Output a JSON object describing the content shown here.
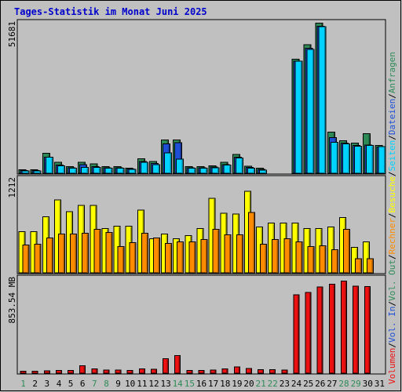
{
  "chart_data": {
    "type": "bar",
    "title": "Tages-Statistik im Monat Juni 2025",
    "categories": [
      "1",
      "2",
      "3",
      "4",
      "5",
      "6",
      "7",
      "8",
      "9",
      "10",
      "11",
      "12",
      "13",
      "14",
      "15",
      "16",
      "17",
      "18",
      "19",
      "20",
      "21",
      "22",
      "23",
      "24",
      "25",
      "26",
      "27",
      "28",
      "29",
      "30",
      "31"
    ],
    "weekend_days": [
      "1",
      "7",
      "8",
      "14",
      "15",
      "21",
      "22",
      "28",
      "29"
    ],
    "colors": {
      "background": "#c0c0c0",
      "title": "#0000cc",
      "weekday_label": "#000000",
      "weekend_label": "#2e8b57",
      "anfragen": "#2e8b57",
      "dateien": "#1f4fd6",
      "seiten": "#00d2ff",
      "besuche": "#ffff00",
      "rechner": "#ff8c00",
      "volumen": "#ee1111"
    },
    "panels": [
      {
        "id": "hits",
        "max_label": "51681",
        "ylim": [
          0,
          51681
        ],
        "series": [
          {
            "name": "Anfragen",
            "values": [
              1200,
              1200,
              6900,
              3800,
              2300,
              3800,
              3200,
              2300,
              2300,
              1700,
              5000,
              4000,
              11400,
              11500,
              2300,
              2300,
              2500,
              3800,
              6400,
              2400,
              1700,
              0,
              0,
              39200,
              44100,
              51500,
              14100,
              11200,
              10300,
              13600,
              9500
            ]
          },
          {
            "name": "Dateien",
            "values": [
              900,
              900,
              5500,
              2800,
              1900,
              3000,
              2300,
              1900,
              1900,
              1500,
              4000,
              3300,
              10100,
              10500,
              1900,
              1900,
              2200,
              3000,
              5500,
              2000,
              1300,
              0,
              0,
              38500,
              43000,
              50500,
              12300,
              10400,
              9500,
              9700,
              9000
            ]
          },
          {
            "name": "Seiten",
            "values": [
              800,
              800,
              5500,
              2600,
              1700,
              2000,
              2000,
              1700,
              1700,
              1300,
              3800,
              3000,
              7000,
              4800,
              1800,
              1800,
              1900,
              2800,
              5300,
              1700,
              1100,
              0,
              0,
              38500,
              42500,
              50300,
              10600,
              10100,
              9300,
              9500,
              9100
            ]
          }
        ]
      },
      {
        "id": "visits",
        "max_label": "1212",
        "ylim": [
          0,
          1212
        ],
        "series": [
          {
            "name": "Besuche",
            "values": [
              530,
              530,
              720,
              940,
              790,
              870,
              870,
              570,
              600,
              600,
              810,
              440,
              500,
              440,
              480,
              570,
              960,
              770,
              760,
              1050,
              590,
              640,
              640,
              640,
              570,
              570,
              590,
              710,
              330,
              400,
              0
            ]
          },
          {
            "name": "Rechner",
            "values": [
              360,
              370,
              450,
              500,
              500,
              510,
              560,
              520,
              340,
              390,
              510,
              450,
              380,
              400,
              400,
              430,
              560,
              490,
              490,
              780,
              370,
              430,
              440,
              400,
              340,
              350,
              300,
              560,
              180,
              180,
              0
            ]
          }
        ]
      },
      {
        "id": "volume",
        "max_label": "853.54 MB",
        "ylim": [
          0,
          853.54
        ],
        "series": [
          {
            "name": "Volumen",
            "values": [
              16,
              16,
              22,
              26,
              24,
              68,
              40,
              28,
              28,
              24,
              38,
              34,
              130,
              160,
              24,
              26,
              28,
              38,
              58,
              44,
              32,
              32,
              28,
              704,
              726,
              776,
              802,
              828,
              782,
              778,
              0
            ]
          }
        ]
      }
    ],
    "legend": [
      {
        "label": "Volumen",
        "color": "#ee1111"
      },
      {
        "label": "Vol. In",
        "color": "#1f4fd6"
      },
      {
        "label": "Vol. Out",
        "color": "#2e8b57"
      },
      {
        "label": "Rechner",
        "color": "#ff8c00"
      },
      {
        "label": "Besuche",
        "color": "#ffff00"
      },
      {
        "label": "Seiten",
        "color": "#00d2ff"
      },
      {
        "label": "Dateien",
        "color": "#1f4fd6"
      },
      {
        "label": "Anfragen",
        "color": "#2e8b57"
      }
    ],
    "legend_separator": "/"
  }
}
